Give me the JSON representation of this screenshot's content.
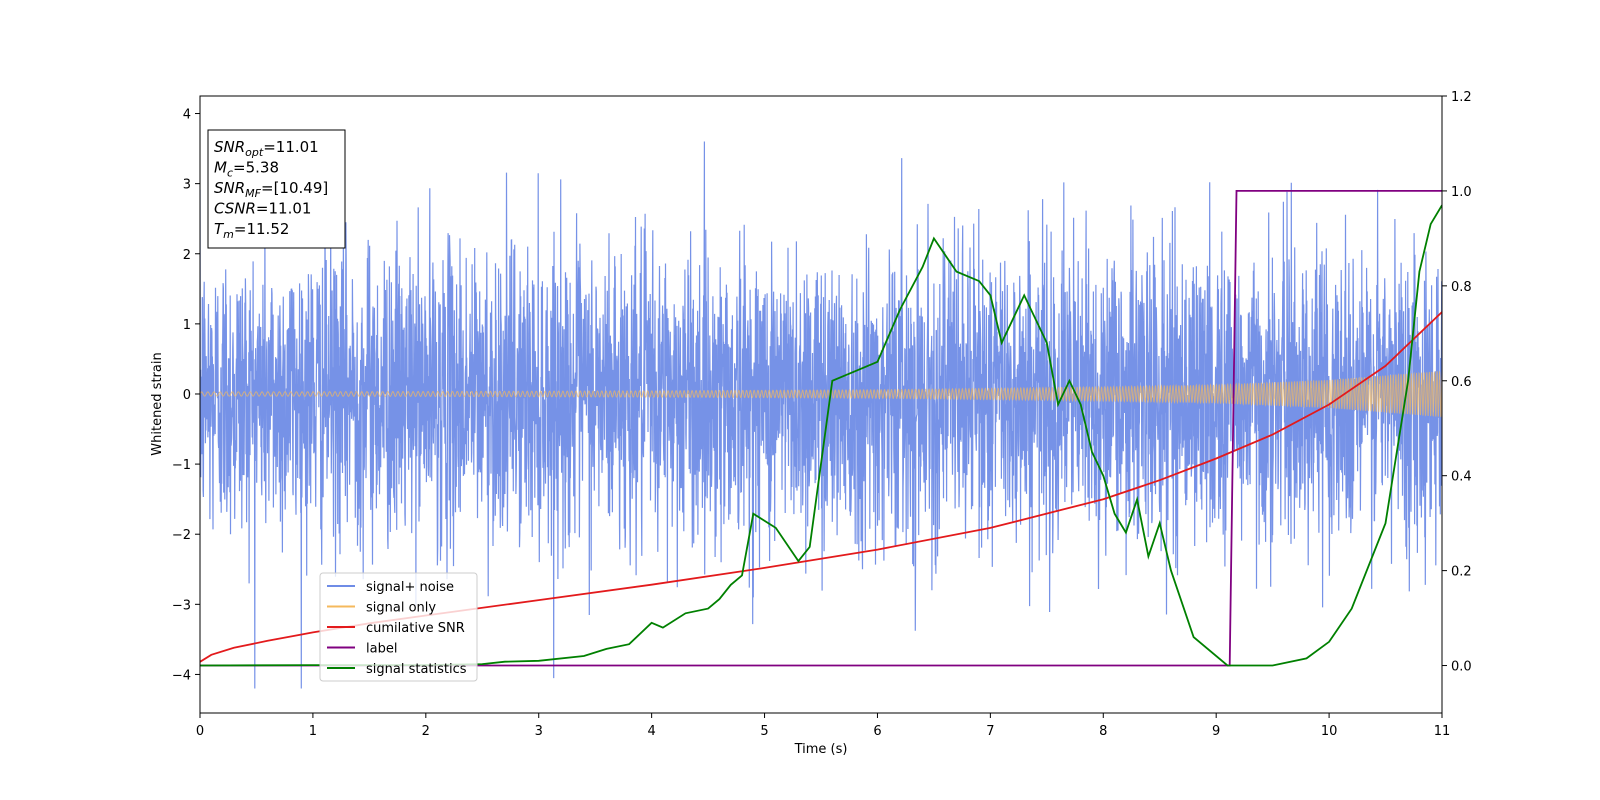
{
  "chart_data": {
    "type": "line",
    "xlabel": "Time (s)",
    "ylabel": "Whitened strain",
    "xlim": [
      0,
      11
    ],
    "ylim": [
      -4.55,
      4.25
    ],
    "y2lim": [
      -0.1,
      1.2
    ],
    "xticks": [
      "0",
      "1",
      "2",
      "3",
      "4",
      "5",
      "6",
      "7",
      "8",
      "9",
      "10",
      "11"
    ],
    "yticks": [
      "4",
      "3",
      "2",
      "1",
      "0",
      "−1",
      "−2",
      "−3",
      "−4"
    ],
    "y2ticks": [
      "1.2",
      "1.0",
      "0.8",
      "0.6",
      "0.4",
      "0.2",
      "0.0"
    ],
    "legend_position": "lower-left",
    "info_box": {
      "lines": [
        {
          "symbol": "SNR",
          "sub": "opt",
          "value": "=11.01"
        },
        {
          "symbol": "M",
          "sub": "c",
          "value": "=5.38"
        },
        {
          "symbol": "SNR",
          "sub": "MF",
          "value": "=[10.49]"
        },
        {
          "symbol": "CSNR",
          "sub": "",
          "value": "=11.01"
        },
        {
          "symbol": "T",
          "sub": "m",
          "value": "=11.52"
        }
      ]
    },
    "series": [
      {
        "name": "signal+ noise",
        "color": "#6f8ce6",
        "axis": "left",
        "kind": "noise",
        "sigma": 1.0,
        "range": [
          -4.2,
          3.9
        ]
      },
      {
        "name": "signal only",
        "color": "#f5b95c",
        "axis": "left",
        "kind": "chirp",
        "amplitude": {
          "x": [
            0,
            2,
            4,
            6,
            8,
            9,
            10,
            11
          ],
          "y": [
            0.03,
            0.035,
            0.045,
            0.06,
            0.1,
            0.13,
            0.2,
            0.33
          ]
        }
      },
      {
        "name": "cumilative SNR",
        "color": "#e31a1c",
        "axis": "left",
        "x": [
          0,
          0.1,
          0.3,
          0.6,
          1,
          1.5,
          2,
          3,
          4,
          5,
          6,
          7,
          8,
          8.5,
          9,
          9.5,
          10,
          10.5,
          11
        ],
        "y": [
          -3.82,
          -3.72,
          -3.62,
          -3.52,
          -3.4,
          -3.27,
          -3.16,
          -2.94,
          -2.72,
          -2.48,
          -2.22,
          -1.91,
          -1.5,
          -1.23,
          -0.92,
          -0.58,
          -0.15,
          0.4,
          1.17
        ]
      },
      {
        "name": "label",
        "color": "#800080",
        "axis": "right",
        "x": [
          0,
          9.12,
          9.18,
          11
        ],
        "y": [
          0,
          0,
          1,
          1
        ]
      },
      {
        "name": "signal statistics",
        "color": "#008000",
        "axis": "right",
        "x": [
          0,
          1,
          2,
          2.5,
          2.7,
          3,
          3.4,
          3.6,
          3.8,
          4,
          4.1,
          4.3,
          4.5,
          4.6,
          4.7,
          4.8,
          4.9,
          5.1,
          5.3,
          5.4,
          5.6,
          5.8,
          6,
          6.2,
          6.4,
          6.5,
          6.7,
          6.9,
          7,
          7.1,
          7.3,
          7.5,
          7.6,
          7.7,
          7.8,
          7.9,
          8,
          8.1,
          8.2,
          8.3,
          8.4,
          8.5,
          8.6,
          8.8,
          9.1,
          9.5,
          9.8,
          10,
          10.2,
          10.5,
          10.7,
          10.8,
          10.9,
          11
        ],
        "y": [
          0,
          0.001,
          0.001,
          0.003,
          0.008,
          0.01,
          0.02,
          0.035,
          0.045,
          0.09,
          0.08,
          0.11,
          0.12,
          0.14,
          0.17,
          0.19,
          0.32,
          0.29,
          0.22,
          0.25,
          0.6,
          0.62,
          0.64,
          0.75,
          0.84,
          0.9,
          0.83,
          0.81,
          0.78,
          0.68,
          0.78,
          0.68,
          0.55,
          0.6,
          0.55,
          0.45,
          0.4,
          0.32,
          0.28,
          0.35,
          0.23,
          0.3,
          0.2,
          0.06,
          0.0,
          0.0,
          0.015,
          0.05,
          0.12,
          0.3,
          0.6,
          0.83,
          0.93,
          0.97
        ]
      }
    ]
  }
}
